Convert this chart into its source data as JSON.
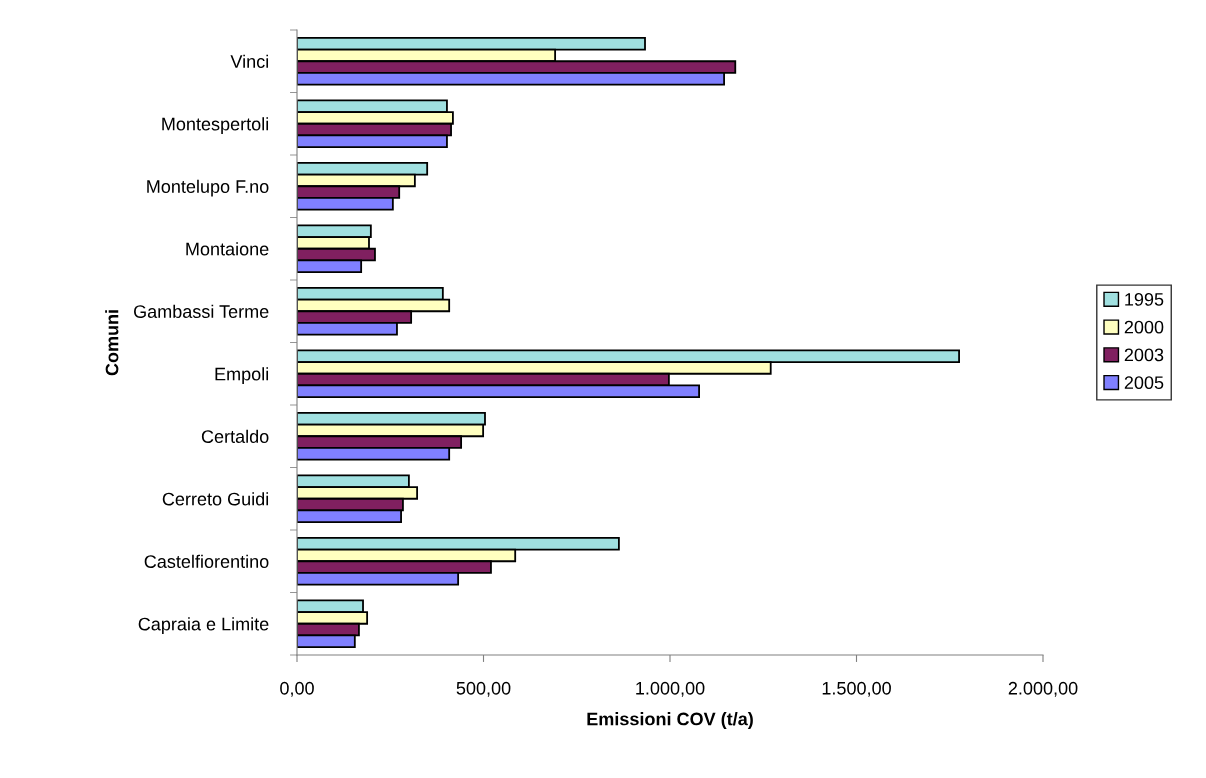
{
  "chart_data": {
    "type": "bar",
    "orientation": "horizontal",
    "xlabel": "Emissioni COV (t/a)",
    "ylabel": "Comuni",
    "categories": [
      "Vinci",
      "Montespertoli",
      "Montelupo F.no",
      "Montaione",
      "Gambassi Terme",
      "Empoli",
      "Certaldo",
      "Cerreto Guidi",
      "Castelfiorentino",
      "Capraia e Limite"
    ],
    "series": [
      {
        "name": "1995",
        "color": "#a0e0e0",
        "values": [
          933,
          402,
          349,
          198,
          391,
          1775,
          504,
          300,
          863,
          177
        ]
      },
      {
        "name": "2000",
        "color": "#ffffc0",
        "values": [
          692,
          418,
          316,
          193,
          408,
          1270,
          499,
          322,
          585,
          188
        ]
      },
      {
        "name": "2003",
        "color": "#802060",
        "values": [
          1175,
          413,
          274,
          209,
          306,
          997,
          440,
          284,
          520,
          166
        ]
      },
      {
        "name": "2005",
        "color": "#8080ff",
        "values": [
          1145,
          402,
          257,
          172,
          268,
          1078,
          408,
          279,
          432,
          155
        ]
      }
    ],
    "xlim": [
      0,
      2000
    ],
    "xticks": [
      {
        "value": 0,
        "label": "0,00"
      },
      {
        "value": 500,
        "label": "500,00"
      },
      {
        "value": 1000,
        "label": "1.000,00"
      },
      {
        "value": 1500,
        "label": "1.500,00"
      },
      {
        "value": 2000,
        "label": "2.000,00"
      }
    ],
    "legend": "right",
    "grid": false
  }
}
